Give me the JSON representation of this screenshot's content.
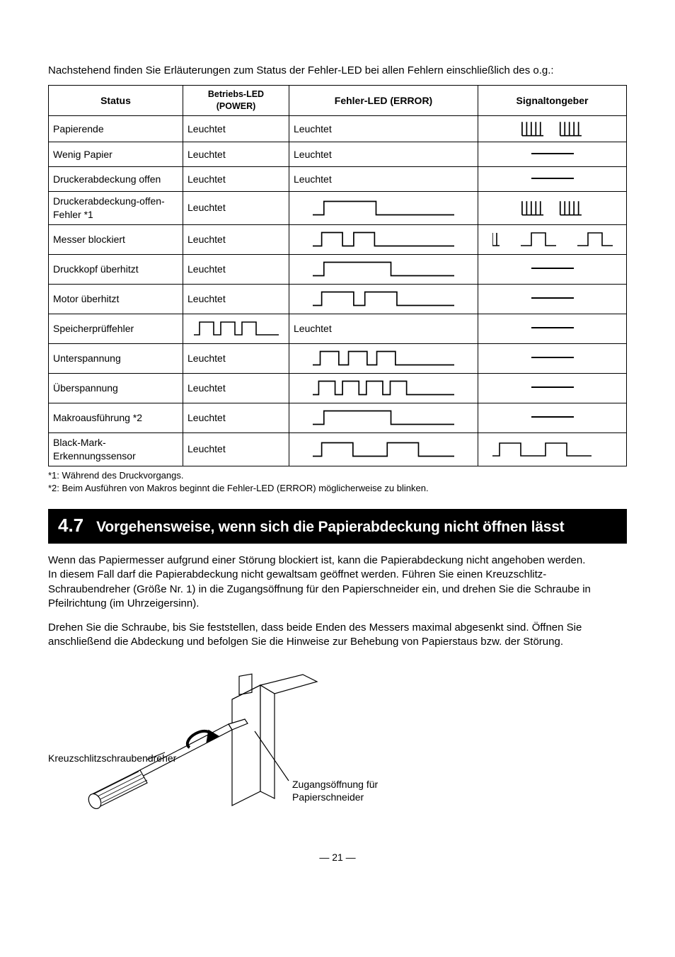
{
  "intro": "Nachstehend finden Sie Erläuterungen zum Status der Fehler-LED bei allen Fehlern einschließlich des o.g.:",
  "table": {
    "headers": [
      "Status",
      "Betriebs-LED (POWER)",
      "Fehler-LED (ERROR)",
      "Signaltongeber"
    ],
    "rows": [
      {
        "status": "Papierende",
        "power": "Leuchtet",
        "error_text": "Leuchtet",
        "error_wave": null,
        "buzzer": "burst2"
      },
      {
        "status": "Wenig Papier",
        "power": "Leuchtet",
        "error_text": "Leuchtet",
        "error_wave": null,
        "buzzer": "dash"
      },
      {
        "status": "Druckerabdeckung offen",
        "power": "Leuchtet",
        "error_text": "Leuchtet",
        "error_wave": null,
        "buzzer": "dash"
      },
      {
        "status": "Druckerabdeckung-offen-Fehler *1",
        "power": "Leuchtet",
        "error_text": null,
        "error_wave": "sq1",
        "buzzer": "burst2"
      },
      {
        "status": "Messer blockiert",
        "power": "Leuchtet",
        "error_text": null,
        "error_wave": "sq2",
        "buzzer": "sq2b"
      },
      {
        "status": "Druckkopf überhitzt",
        "power": "Leuchtet",
        "error_text": null,
        "error_wave": "sq1_long",
        "buzzer": "dash"
      },
      {
        "status": "Motor überhitzt",
        "power": "Leuchtet",
        "error_text": null,
        "error_wave": "sq2_long",
        "buzzer": "dash"
      },
      {
        "status": "Speicherprüffehler",
        "power_wave": "sq3s",
        "power": null,
        "error_text": "Leuchtet",
        "error_wave": null,
        "buzzer": "dash"
      },
      {
        "status": "Unterspannung",
        "power": "Leuchtet",
        "error_text": null,
        "error_wave": "sq3",
        "buzzer": "dash"
      },
      {
        "status": "Überspannung",
        "power": "Leuchtet",
        "error_text": null,
        "error_wave": "sq4",
        "buzzer": "dash"
      },
      {
        "status": "Makroausführung *2",
        "power": "Leuchtet",
        "error_text": null,
        "error_wave": "sq1_long",
        "buzzer": "dash"
      },
      {
        "status": "Black-Mark-Erkennungssensor",
        "power": "Leuchtet",
        "error_text": null,
        "error_wave": "sq1_sq1",
        "buzzer": "sq1b"
      }
    ]
  },
  "footnote1": "*1: Während des Druckvorgangs.",
  "footnote2": "*2: Beim Ausführen von Makros beginnt die Fehler-LED (ERROR) möglicherweise zu blinken.",
  "section_num": "4.7",
  "section_title": "Vorgehensweise, wenn sich die Papierabdeckung nicht öffnen lässt",
  "para1": "Wenn das Papiermesser aufgrund einer Störung blockiert ist, kann die Papierabdeckung nicht angehoben werden.",
  "para2": "In diesem Fall darf die Papierabdeckung nicht gewaltsam geöffnet werden. Führen Sie einen Kreuzschlitz-Schraubendreher (Größe Nr. 1) in die Zugangsöffnung für den Papierschneider ein, und drehen Sie die Schraube in Pfeilrichtung (im Uhrzeigersinn).",
  "para3": "Drehen Sie die Schraube, bis Sie feststellen, dass beide Enden des Messers maximal abgesenkt sind. Öffnen Sie anschließend die Abdeckung und befolgen Sie die Hinweise zur Behebung von Papierstaus bzw. der Störung.",
  "label_screwdriver": "Kreuzschlitzschraubendreher",
  "label_opening1": "Zugangsöffnung für",
  "label_opening2": "Papierschneider",
  "page_number": "— 21 —",
  "wave_stroke": "#000000",
  "wave_stroke_width": 1.6
}
